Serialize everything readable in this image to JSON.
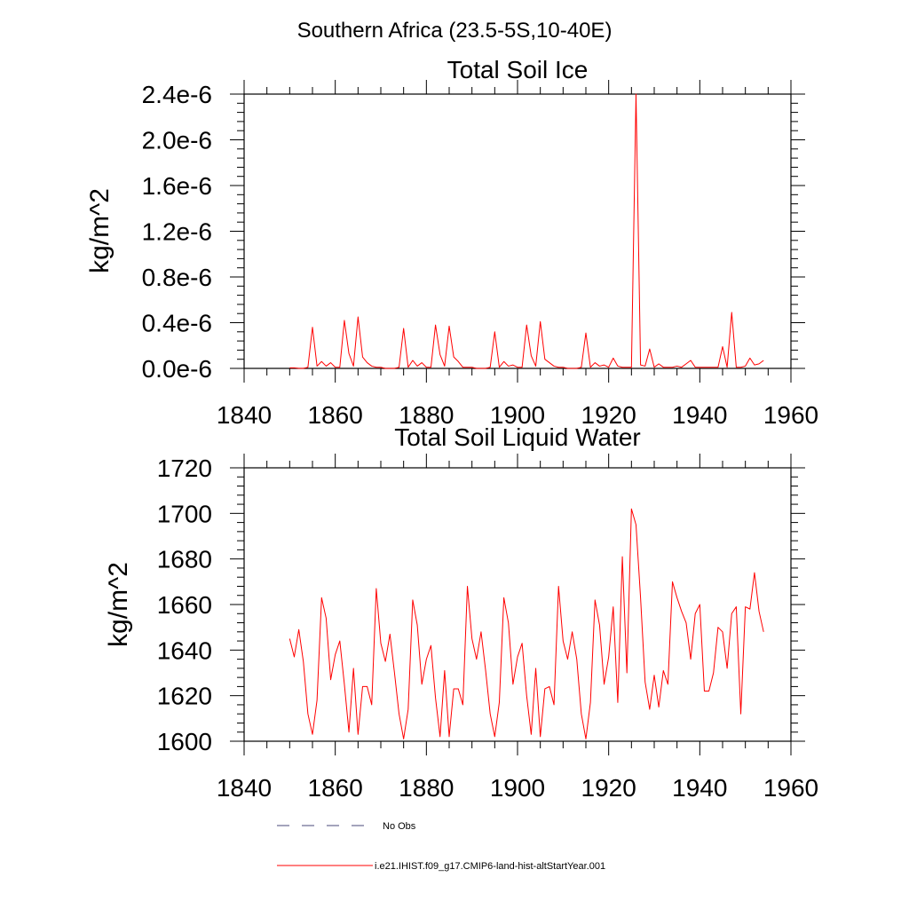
{
  "figure_title": "Southern Africa (23.5-5S,10-40E)",
  "colors": {
    "model": "#ff0000",
    "obs": "#4a4a7a",
    "axis": "#000000"
  },
  "chart_data": [
    {
      "type": "line",
      "title": "Total Soil Ice",
      "ylabel": "kg/m^2",
      "xlabel": "",
      "xlim": [
        1840,
        1960
      ],
      "ylim": [
        0,
        2.4e-06
      ],
      "xticks": [
        1840,
        1860,
        1880,
        1900,
        1920,
        1940,
        1960
      ],
      "xtick_labels": [
        "1840",
        "1860",
        "1880",
        "1900",
        "1920",
        "1940",
        "1960"
      ],
      "yticks": [
        0,
        4e-07,
        8e-07,
        1.2e-06,
        1.6e-06,
        2e-06,
        2.4e-06
      ],
      "ytick_labels": [
        "0.0e-6",
        "0.4e-6",
        "0.8e-6",
        "1.2e-6",
        "1.6e-6",
        "2.0e-6",
        "2.4e-6"
      ],
      "grid": false,
      "x": [
        1850,
        1851,
        1852,
        1853,
        1854,
        1855,
        1856,
        1857,
        1858,
        1859,
        1860,
        1861,
        1862,
        1863,
        1864,
        1865,
        1866,
        1867,
        1868,
        1869,
        1870,
        1871,
        1872,
        1873,
        1874,
        1875,
        1876,
        1877,
        1878,
        1879,
        1880,
        1881,
        1882,
        1883,
        1884,
        1885,
        1886,
        1887,
        1888,
        1889,
        1890,
        1891,
        1892,
        1893,
        1894,
        1895,
        1896,
        1897,
        1898,
        1899,
        1900,
        1901,
        1902,
        1903,
        1904,
        1905,
        1906,
        1907,
        1908,
        1909,
        1910,
        1911,
        1912,
        1913,
        1914,
        1915,
        1916,
        1917,
        1918,
        1919,
        1920,
        1921,
        1922,
        1923,
        1924,
        1925,
        1926,
        1927,
        1928,
        1929,
        1930,
        1931,
        1932,
        1933,
        1934,
        1935,
        1936,
        1937,
        1938,
        1939,
        1940,
        1941,
        1942,
        1943,
        1944,
        1945,
        1946,
        1947,
        1948,
        1949,
        1950,
        1951,
        1952,
        1953,
        1954
      ],
      "series": [
        {
          "name": "i.e21.IHIST.f09_g17.CMIP6-land-hist-altStartYear.001",
          "values": [
            5e-09,
            5e-09,
            0,
            0,
            1e-08,
            3.6e-07,
            2e-08,
            6e-08,
            2e-08,
            5e-08,
            1e-08,
            1e-08,
            4.2e-07,
            1.3e-07,
            2e-08,
            4.5e-07,
            1e-07,
            5e-08,
            2e-08,
            1e-08,
            1e-08,
            0,
            0,
            0,
            1e-08,
            3.5e-07,
            1e-08,
            7e-08,
            2e-08,
            5e-08,
            1e-08,
            1e-08,
            3.8e-07,
            1.2e-07,
            2e-08,
            3.7e-07,
            1e-07,
            6e-08,
            1e-08,
            1e-08,
            1e-08,
            0,
            0,
            0,
            1e-08,
            3.2e-07,
            1e-08,
            6e-08,
            2e-08,
            3e-08,
            1e-08,
            1e-08,
            3.8e-07,
            1.1e-07,
            2e-08,
            4.1e-07,
            8e-08,
            5e-08,
            2e-08,
            1e-08,
            1e-08,
            0,
            0,
            0,
            1e-08,
            3.1e-07,
            1e-08,
            5e-08,
            2e-08,
            3e-08,
            1e-08,
            9e-08,
            2e-08,
            1e-08,
            1e-08,
            1e-08,
            2.4e-06,
            3e-08,
            2e-08,
            1.7e-07,
            1e-08,
            4e-08,
            1e-08,
            1e-08,
            1e-08,
            2e-08,
            1e-08,
            4e-08,
            7e-08,
            1e-08,
            1e-08,
            1e-08,
            1e-08,
            1e-08,
            1e-08,
            1.9e-07,
            1e-08,
            4.9e-07,
            1e-08,
            1e-08,
            2e-08,
            9e-08,
            3e-08,
            4e-08,
            7e-08
          ]
        }
      ]
    },
    {
      "type": "line",
      "title": "Total Soil Liquid Water",
      "ylabel": "kg/m^2",
      "xlabel": "",
      "xlim": [
        1840,
        1960
      ],
      "ylim": [
        1600,
        1720
      ],
      "xticks": [
        1840,
        1860,
        1880,
        1900,
        1920,
        1940,
        1960
      ],
      "xtick_labels": [
        "1840",
        "1860",
        "1880",
        "1900",
        "1920",
        "1940",
        "1960"
      ],
      "yticks": [
        1600,
        1620,
        1640,
        1660,
        1680,
        1700,
        1720
      ],
      "ytick_labels": [
        "1600",
        "1620",
        "1640",
        "1660",
        "1680",
        "1700",
        "1720"
      ],
      "grid": false,
      "x": [
        1850,
        1851,
        1852,
        1853,
        1854,
        1855,
        1856,
        1857,
        1858,
        1859,
        1860,
        1861,
        1862,
        1863,
        1864,
        1865,
        1866,
        1867,
        1868,
        1869,
        1870,
        1871,
        1872,
        1873,
        1874,
        1875,
        1876,
        1877,
        1878,
        1879,
        1880,
        1881,
        1882,
        1883,
        1884,
        1885,
        1886,
        1887,
        1888,
        1889,
        1890,
        1891,
        1892,
        1893,
        1894,
        1895,
        1896,
        1897,
        1898,
        1899,
        1900,
        1901,
        1902,
        1903,
        1904,
        1905,
        1906,
        1907,
        1908,
        1909,
        1910,
        1911,
        1912,
        1913,
        1914,
        1915,
        1916,
        1917,
        1918,
        1919,
        1920,
        1921,
        1922,
        1923,
        1924,
        1925,
        1926,
        1927,
        1928,
        1929,
        1930,
        1931,
        1932,
        1933,
        1934,
        1935,
        1936,
        1937,
        1938,
        1939,
        1940,
        1941,
        1942,
        1943,
        1944,
        1945,
        1946,
        1947,
        1948,
        1949,
        1950,
        1951,
        1952,
        1953,
        1954
      ],
      "series": [
        {
          "name": "i.e21.IHIST.f09_g17.CMIP6-land-hist-altStartYear.001",
          "values": [
            1645,
            1637,
            1649,
            1635,
            1612,
            1603,
            1618,
            1663,
            1654,
            1627,
            1638,
            1644,
            1625,
            1604,
            1632,
            1603,
            1624,
            1624,
            1616,
            1667,
            1643,
            1635,
            1647,
            1630,
            1612,
            1601,
            1614,
            1662,
            1651,
            1625,
            1636,
            1642,
            1619,
            1602,
            1631,
            1602,
            1623,
            1623,
            1616,
            1668,
            1645,
            1636,
            1648,
            1631,
            1612,
            1602,
            1617,
            1663,
            1652,
            1625,
            1637,
            1643,
            1620,
            1603,
            1632,
            1602,
            1623,
            1624,
            1616,
            1668,
            1644,
            1636,
            1648,
            1636,
            1612,
            1601,
            1617,
            1662,
            1651,
            1625,
            1637,
            1659,
            1617,
            1681,
            1630,
            1702,
            1695,
            1663,
            1626,
            1614,
            1629,
            1615,
            1631,
            1625,
            1670,
            1663,
            1657,
            1652,
            1636,
            1656,
            1660,
            1622,
            1622,
            1630,
            1650,
            1648,
            1632,
            1656,
            1659,
            1612,
            1659,
            1658,
            1674,
            1657,
            1648
          ]
        }
      ]
    }
  ],
  "legend": {
    "entries": [
      {
        "label": "No Obs",
        "style": "dashed"
      },
      {
        "label": "i.e21.IHIST.f09_g17.CMIP6-land-hist-altStartYear.001",
        "style": "solid"
      }
    ]
  }
}
